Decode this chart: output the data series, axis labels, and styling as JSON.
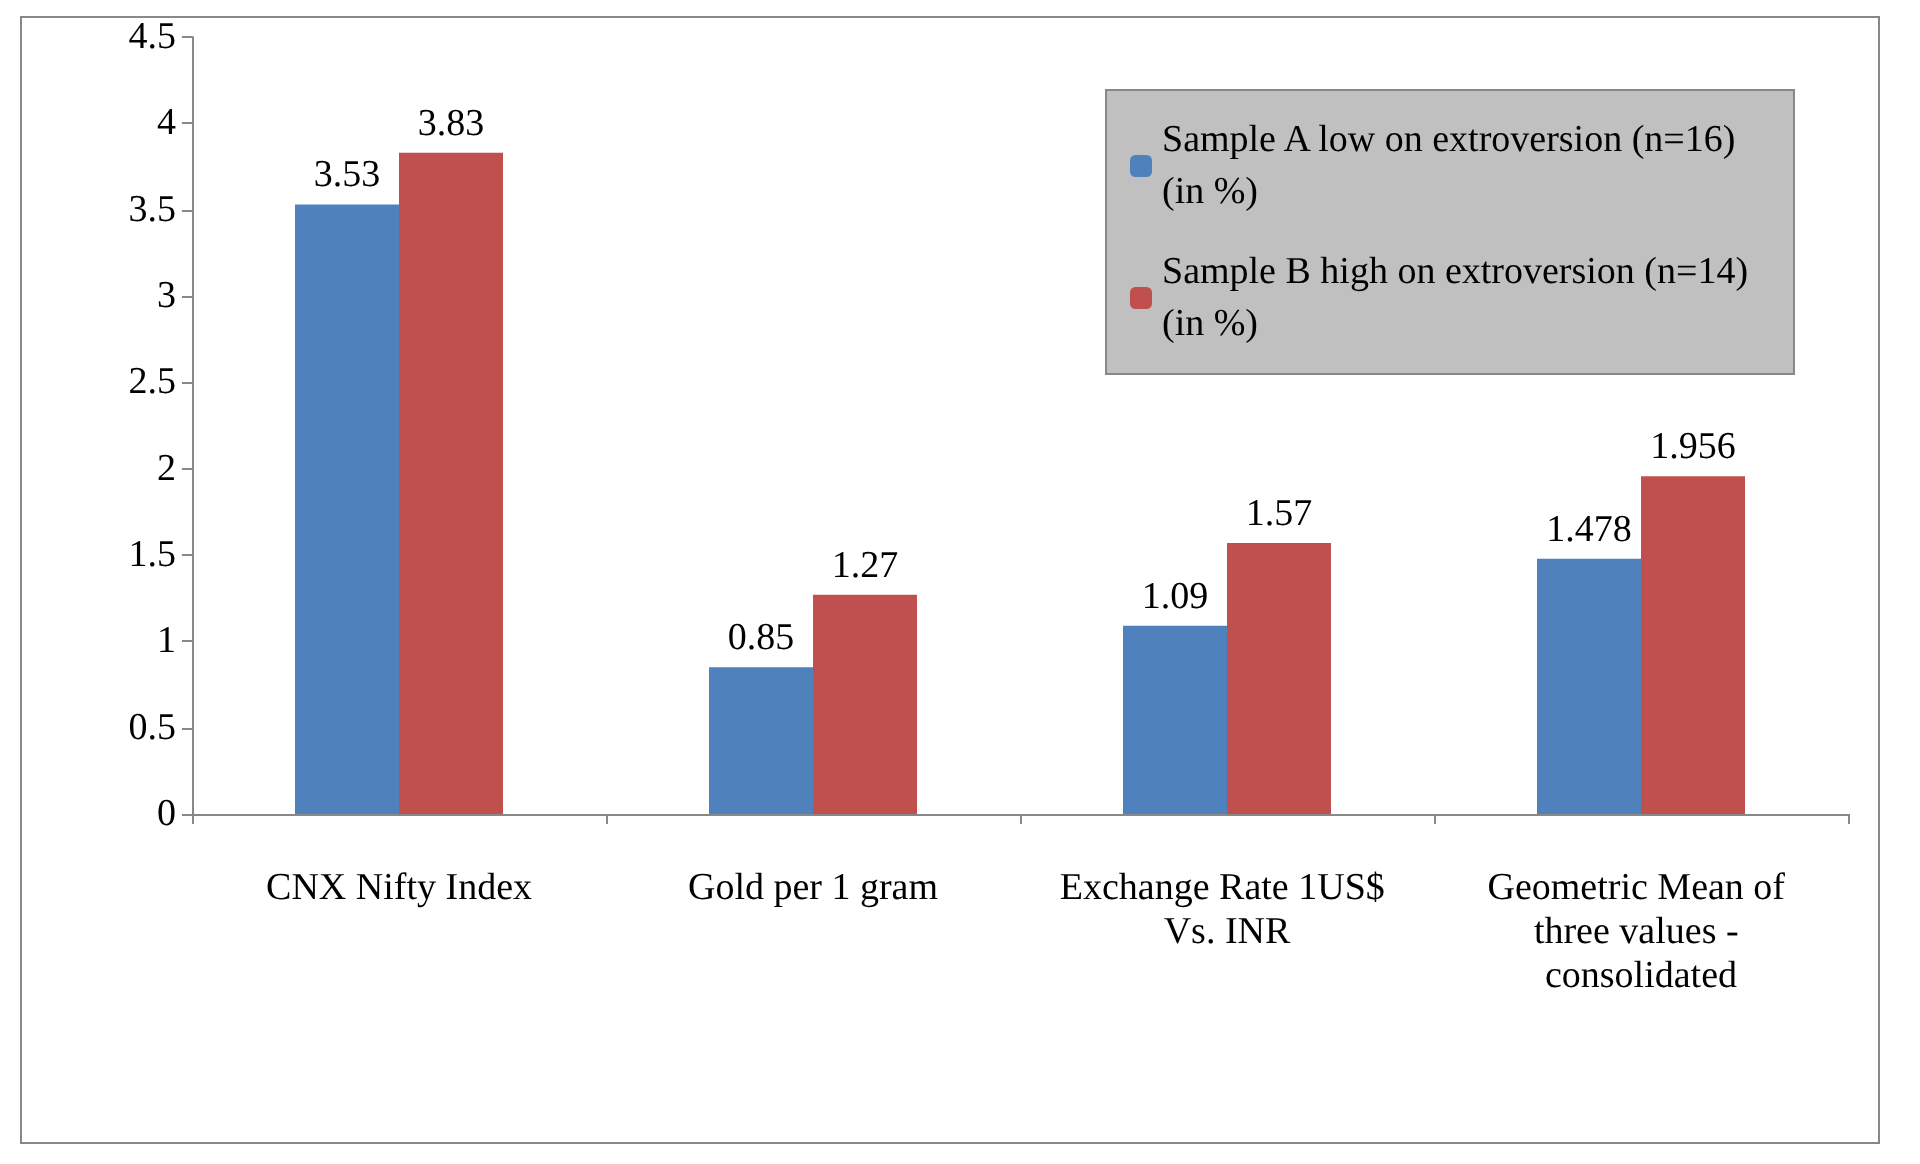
{
  "chart_data": {
    "type": "bar",
    "categories": [
      "CNX Nifty Index",
      "Gold per 1 gram",
      "Exchange Rate 1US$ Vs. INR",
      "Geometric Mean of three values - consolidated"
    ],
    "series": [
      {
        "name": "Sample A low on extroversion (n=16) (in %)",
        "color": "#4f81bd",
        "values": [
          3.53,
          0.85,
          1.09,
          1.478
        ]
      },
      {
        "name": "Sample B high on extroversion (n=14) (in %)",
        "color": "#c0504d",
        "values": [
          3.83,
          1.27,
          1.57,
          1.956
        ]
      }
    ],
    "ylim": [
      0,
      4.5
    ],
    "yticks": [
      0,
      0.5,
      1,
      1.5,
      2,
      2.5,
      3,
      3.5,
      4,
      4.5
    ],
    "grid": false,
    "legend": "top right",
    "data_labels": true
  }
}
